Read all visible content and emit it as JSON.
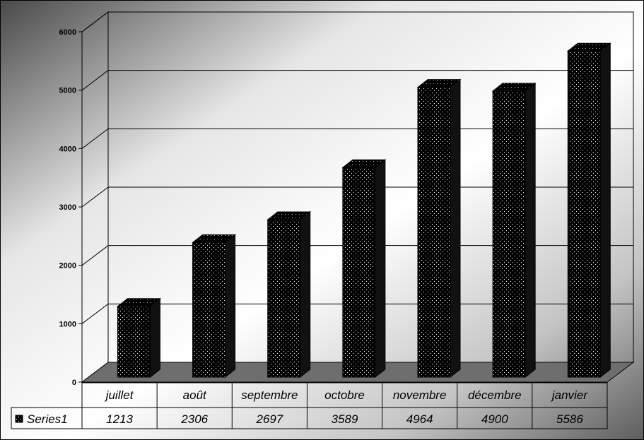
{
  "chart_data": {
    "type": "bar",
    "categories": [
      "juillet",
      "août",
      "septembre",
      "octobre",
      "novembre",
      "décembre",
      "janvier"
    ],
    "series": [
      {
        "name": "Series1",
        "values": [
          1213,
          2306,
          2697,
          3589,
          4964,
          4900,
          5586
        ]
      }
    ],
    "ylim": [
      0,
      6000
    ],
    "yticks": [
      "0",
      "1000",
      "2000",
      "3000",
      "4000",
      "5000",
      "6000"
    ],
    "grid": true,
    "legend": "data-table-left",
    "data_table": true,
    "style": {
      "bar_color": "#000000",
      "bar_dots": "#ffffff",
      "floor_color": "#6e6e6e"
    }
  }
}
